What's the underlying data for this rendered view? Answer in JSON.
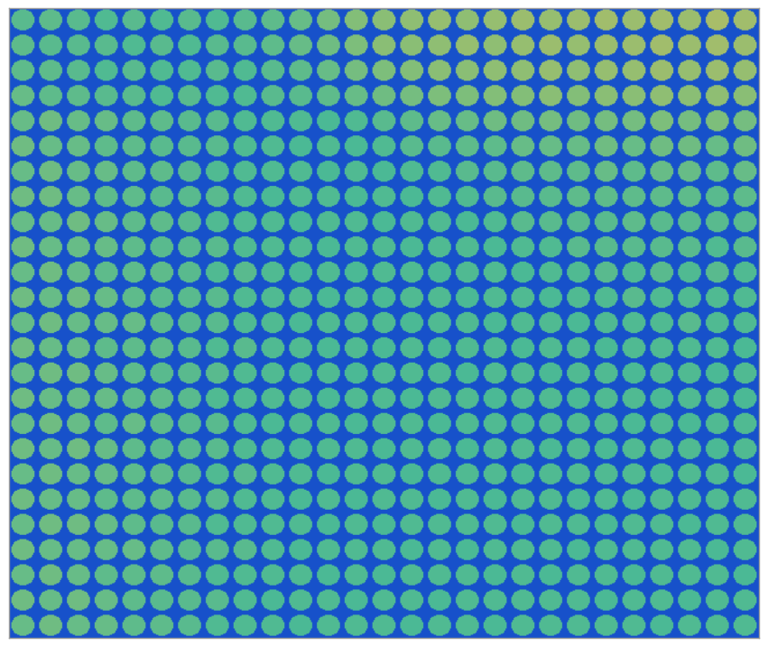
{
  "chart_data": {
    "type": "heatmap",
    "tick_labels": false,
    "grid": false,
    "clim": [
      0,
      1
    ],
    "background": 0.1,
    "cells": [
      [
        0.56,
        0.57,
        0.56,
        0.55,
        0.56,
        0.55,
        0.56,
        0.55,
        0.56,
        0.57,
        0.58,
        0.6,
        0.62,
        0.63,
        0.64,
        0.65,
        0.64,
        0.65,
        0.66,
        0.65,
        0.66,
        0.67,
        0.66,
        0.67,
        0.66,
        0.68,
        0.67
      ],
      [
        0.57,
        0.56,
        0.56,
        0.56,
        0.55,
        0.56,
        0.55,
        0.56,
        0.56,
        0.57,
        0.58,
        0.59,
        0.61,
        0.63,
        0.63,
        0.64,
        0.65,
        0.64,
        0.65,
        0.66,
        0.65,
        0.66,
        0.66,
        0.67,
        0.66,
        0.67,
        0.66
      ],
      [
        0.57,
        0.57,
        0.56,
        0.55,
        0.56,
        0.55,
        0.55,
        0.56,
        0.55,
        0.56,
        0.57,
        0.58,
        0.6,
        0.61,
        0.62,
        0.63,
        0.63,
        0.64,
        0.64,
        0.65,
        0.64,
        0.65,
        0.65,
        0.66,
        0.65,
        0.66,
        0.65
      ],
      [
        0.58,
        0.57,
        0.57,
        0.56,
        0.56,
        0.55,
        0.56,
        0.55,
        0.55,
        0.56,
        0.56,
        0.57,
        0.58,
        0.59,
        0.6,
        0.61,
        0.61,
        0.62,
        0.62,
        0.63,
        0.62,
        0.63,
        0.63,
        0.64,
        0.63,
        0.64,
        0.63
      ],
      [
        0.58,
        0.59,
        0.58,
        0.58,
        0.57,
        0.57,
        0.56,
        0.56,
        0.55,
        0.55,
        0.55,
        0.54,
        0.55,
        0.56,
        0.57,
        0.58,
        0.58,
        0.59,
        0.59,
        0.6,
        0.59,
        0.6,
        0.6,
        0.61,
        0.6,
        0.61,
        0.6
      ],
      [
        0.59,
        0.58,
        0.58,
        0.57,
        0.57,
        0.56,
        0.56,
        0.56,
        0.55,
        0.55,
        0.54,
        0.55,
        0.54,
        0.55,
        0.56,
        0.56,
        0.57,
        0.57,
        0.58,
        0.58,
        0.58,
        0.59,
        0.58,
        0.59,
        0.59,
        0.58,
        0.59
      ],
      [
        0.58,
        0.59,
        0.58,
        0.58,
        0.57,
        0.57,
        0.56,
        0.55,
        0.55,
        0.55,
        0.55,
        0.54,
        0.55,
        0.54,
        0.55,
        0.55,
        0.56,
        0.56,
        0.57,
        0.57,
        0.57,
        0.58,
        0.57,
        0.58,
        0.58,
        0.57,
        0.58
      ],
      [
        0.59,
        0.59,
        0.58,
        0.57,
        0.57,
        0.56,
        0.56,
        0.56,
        0.55,
        0.54,
        0.55,
        0.55,
        0.54,
        0.55,
        0.54,
        0.55,
        0.55,
        0.56,
        0.56,
        0.56,
        0.57,
        0.57,
        0.57,
        0.57,
        0.57,
        0.56,
        0.57
      ],
      [
        0.58,
        0.58,
        0.59,
        0.58,
        0.57,
        0.57,
        0.56,
        0.55,
        0.55,
        0.55,
        0.54,
        0.55,
        0.55,
        0.54,
        0.55,
        0.55,
        0.54,
        0.55,
        0.56,
        0.56,
        0.56,
        0.56,
        0.57,
        0.56,
        0.56,
        0.56,
        0.56
      ],
      [
        0.59,
        0.58,
        0.58,
        0.58,
        0.57,
        0.56,
        0.56,
        0.56,
        0.55,
        0.55,
        0.55,
        0.54,
        0.55,
        0.55,
        0.54,
        0.55,
        0.55,
        0.54,
        0.55,
        0.55,
        0.56,
        0.56,
        0.56,
        0.56,
        0.56,
        0.55,
        0.56
      ],
      [
        0.58,
        0.59,
        0.58,
        0.57,
        0.57,
        0.57,
        0.56,
        0.55,
        0.56,
        0.55,
        0.54,
        0.55,
        0.54,
        0.55,
        0.55,
        0.54,
        0.55,
        0.55,
        0.54,
        0.55,
        0.55,
        0.56,
        0.55,
        0.56,
        0.55,
        0.56,
        0.55
      ],
      [
        0.59,
        0.58,
        0.59,
        0.58,
        0.57,
        0.56,
        0.56,
        0.56,
        0.55,
        0.55,
        0.55,
        0.54,
        0.55,
        0.54,
        0.55,
        0.55,
        0.54,
        0.55,
        0.55,
        0.54,
        0.55,
        0.55,
        0.56,
        0.55,
        0.55,
        0.55,
        0.55
      ],
      [
        0.58,
        0.59,
        0.58,
        0.58,
        0.58,
        0.57,
        0.56,
        0.56,
        0.55,
        0.55,
        0.54,
        0.55,
        0.55,
        0.55,
        0.54,
        0.55,
        0.55,
        0.54,
        0.55,
        0.55,
        0.54,
        0.55,
        0.55,
        0.55,
        0.56,
        0.55,
        0.55
      ],
      [
        0.59,
        0.58,
        0.58,
        0.57,
        0.57,
        0.57,
        0.56,
        0.55,
        0.56,
        0.55,
        0.55,
        0.54,
        0.55,
        0.54,
        0.55,
        0.54,
        0.55,
        0.55,
        0.54,
        0.55,
        0.55,
        0.54,
        0.55,
        0.55,
        0.55,
        0.55,
        0.54
      ],
      [
        0.58,
        0.59,
        0.59,
        0.58,
        0.57,
        0.56,
        0.56,
        0.56,
        0.55,
        0.55,
        0.54,
        0.55,
        0.54,
        0.55,
        0.55,
        0.55,
        0.54,
        0.55,
        0.55,
        0.54,
        0.55,
        0.55,
        0.54,
        0.55,
        0.55,
        0.54,
        0.55
      ],
      [
        0.59,
        0.58,
        0.58,
        0.58,
        0.57,
        0.57,
        0.56,
        0.55,
        0.55,
        0.55,
        0.55,
        0.54,
        0.55,
        0.55,
        0.54,
        0.55,
        0.55,
        0.54,
        0.55,
        0.55,
        0.54,
        0.55,
        0.55,
        0.54,
        0.55,
        0.55,
        0.54
      ],
      [
        0.58,
        0.59,
        0.58,
        0.57,
        0.58,
        0.57,
        0.56,
        0.56,
        0.55,
        0.54,
        0.55,
        0.55,
        0.54,
        0.55,
        0.55,
        0.54,
        0.55,
        0.55,
        0.54,
        0.55,
        0.55,
        0.55,
        0.54,
        0.55,
        0.54,
        0.55,
        0.55
      ],
      [
        0.59,
        0.58,
        0.59,
        0.58,
        0.57,
        0.56,
        0.56,
        0.56,
        0.55,
        0.55,
        0.54,
        0.55,
        0.55,
        0.54,
        0.55,
        0.55,
        0.54,
        0.55,
        0.55,
        0.54,
        0.55,
        0.54,
        0.55,
        0.55,
        0.55,
        0.54,
        0.55
      ],
      [
        0.58,
        0.59,
        0.58,
        0.58,
        0.57,
        0.57,
        0.56,
        0.55,
        0.56,
        0.55,
        0.55,
        0.54,
        0.55,
        0.55,
        0.54,
        0.55,
        0.55,
        0.55,
        0.54,
        0.55,
        0.55,
        0.55,
        0.55,
        0.54,
        0.55,
        0.55,
        0.54
      ],
      [
        0.59,
        0.58,
        0.58,
        0.57,
        0.57,
        0.57,
        0.56,
        0.56,
        0.55,
        0.55,
        0.54,
        0.55,
        0.54,
        0.55,
        0.55,
        0.54,
        0.55,
        0.54,
        0.55,
        0.55,
        0.54,
        0.55,
        0.54,
        0.55,
        0.55,
        0.55,
        0.55
      ],
      [
        0.58,
        0.59,
        0.59,
        0.58,
        0.57,
        0.56,
        0.56,
        0.55,
        0.55,
        0.55,
        0.55,
        0.54,
        0.55,
        0.54,
        0.55,
        0.55,
        0.55,
        0.55,
        0.54,
        0.55,
        0.55,
        0.54,
        0.55,
        0.55,
        0.54,
        0.55,
        0.55
      ],
      [
        0.59,
        0.58,
        0.58,
        0.58,
        0.58,
        0.57,
        0.56,
        0.56,
        0.56,
        0.55,
        0.54,
        0.55,
        0.55,
        0.55,
        0.54,
        0.55,
        0.54,
        0.55,
        0.55,
        0.55,
        0.54,
        0.55,
        0.55,
        0.55,
        0.55,
        0.54,
        0.55
      ],
      [
        0.58,
        0.59,
        0.58,
        0.57,
        0.57,
        0.57,
        0.56,
        0.55,
        0.55,
        0.55,
        0.55,
        0.54,
        0.55,
        0.54,
        0.55,
        0.55,
        0.55,
        0.54,
        0.55,
        0.54,
        0.55,
        0.55,
        0.54,
        0.55,
        0.55,
        0.55,
        0.54
      ],
      [
        0.59,
        0.58,
        0.59,
        0.58,
        0.57,
        0.56,
        0.56,
        0.56,
        0.55,
        0.54,
        0.55,
        0.55,
        0.54,
        0.55,
        0.55,
        0.54,
        0.55,
        0.55,
        0.55,
        0.55,
        0.55,
        0.54,
        0.55,
        0.55,
        0.54,
        0.55,
        0.55
      ],
      [
        0.58,
        0.59,
        0.58,
        0.58,
        0.57,
        0.57,
        0.56,
        0.55,
        0.55,
        0.55,
        0.54,
        0.55,
        0.55,
        0.55,
        0.54,
        0.55,
        0.55,
        0.54,
        0.55,
        0.55,
        0.55,
        0.55,
        0.55,
        0.54,
        0.55,
        0.55,
        0.55
      ]
    ]
  }
}
